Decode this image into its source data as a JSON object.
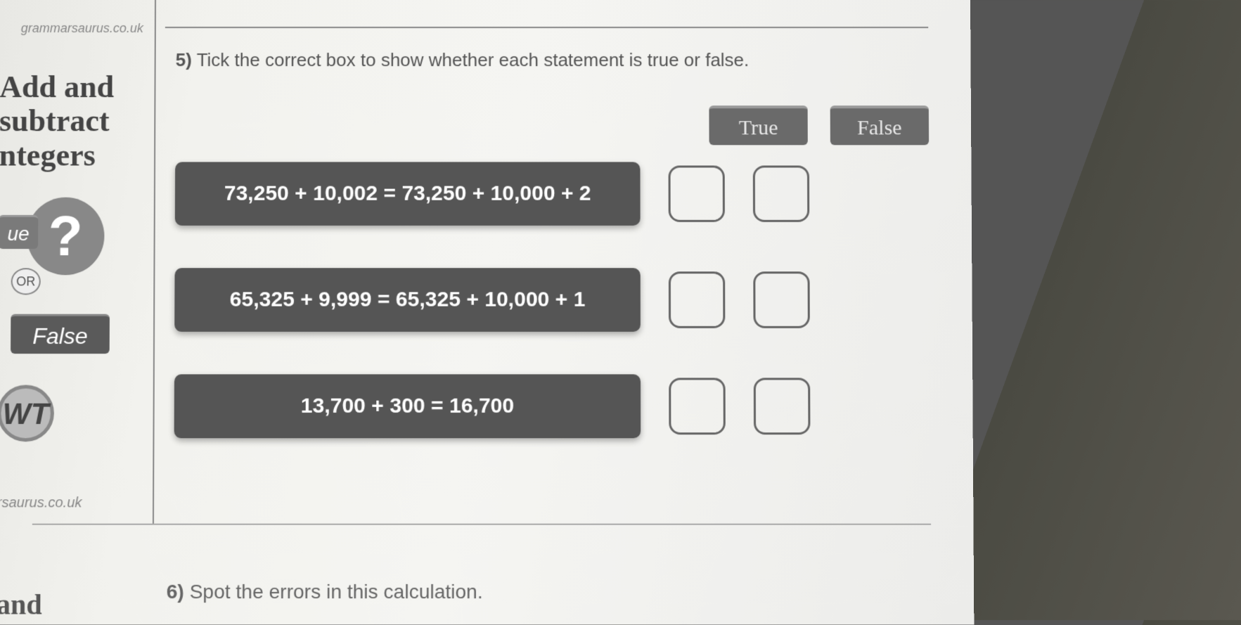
{
  "source": {
    "url_top": "grammarsaurus.co.uk",
    "url_bot": "rsaurus.co.uk"
  },
  "left_panel": {
    "title_line1": "Add and",
    "title_line2": "subtract",
    "title_line3": "ntegers",
    "ue": "ue",
    "q_mark": "?",
    "or": "OR",
    "false": "False",
    "wt": "WT",
    "and": "and"
  },
  "question5": {
    "number": "5)",
    "text": "Tick the correct box to show whether each statement is true or false."
  },
  "headers": {
    "true": "True",
    "false": "False"
  },
  "statements": [
    {
      "text": "73,250 + 10,002 = 73,250 + 10,000 + 2"
    },
    {
      "text": "65,325 + 9,999 = 65,325 + 10,000 + 1"
    },
    {
      "text": "13,700 + 300 = 16,700"
    }
  ],
  "question6": {
    "number": "6)",
    "text": "Spot the errors in this calculation."
  },
  "styling": {
    "paper_bg": "#f2f2ee",
    "statement_bg": "#555555",
    "statement_fg": "#ffffff",
    "chip_bg": "#6a6a6a",
    "chip_fg": "#e8e8e8",
    "checkbox_border": "#666666",
    "checkbox_radius": 16,
    "stmt_fontsize": 30,
    "chip_fontsize": 30,
    "q_fontsize": 26
  }
}
